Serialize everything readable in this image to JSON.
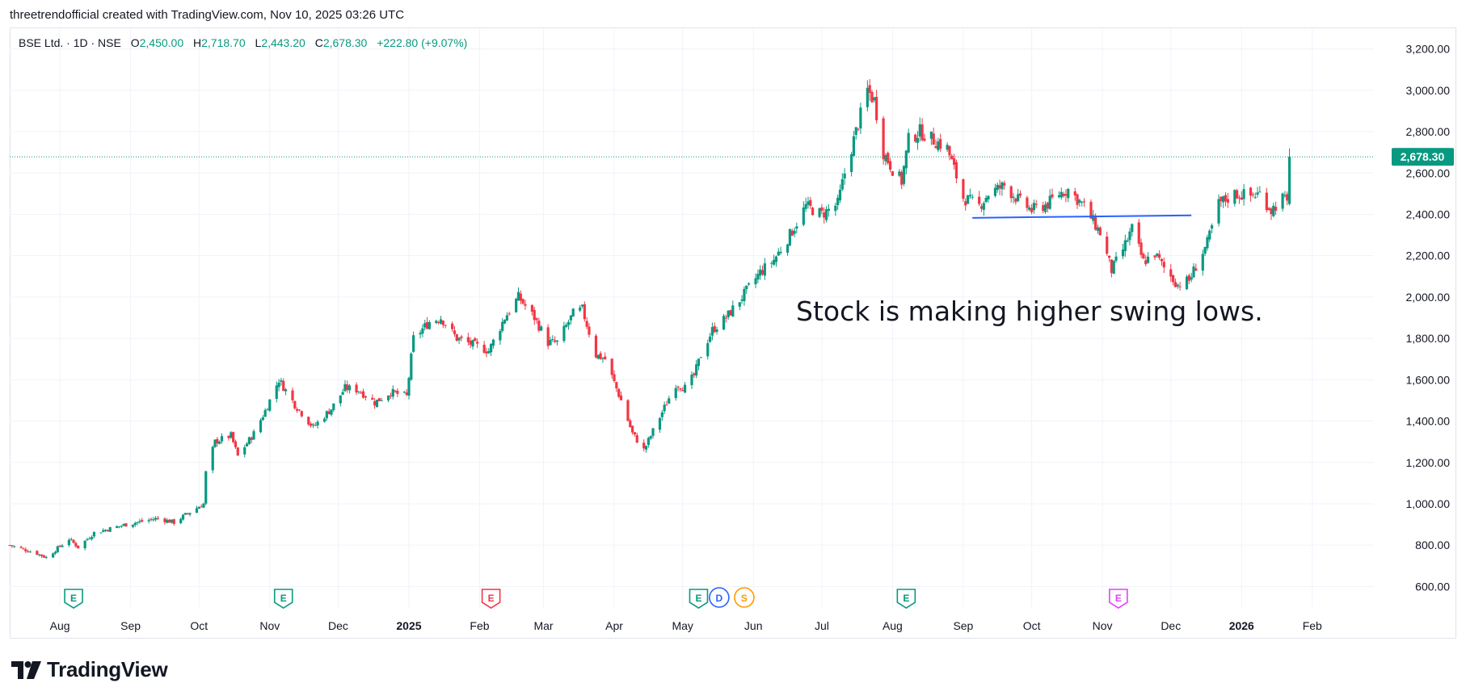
{
  "header": {
    "attribution": "threetrendofficial created with TradingView.com, Nov 10, 2025 03:26 UTC"
  },
  "legend": {
    "symbol": "BSE Ltd. · 1D · NSE",
    "o_label": "O",
    "o_value": "2,450.00",
    "h_label": "H",
    "h_value": "2,718.70",
    "l_label": "L",
    "l_value": "2,443.20",
    "c_label": "C",
    "c_value": "2,678.30",
    "change": "+222.80 (+9.07%)"
  },
  "annotation": "Stock is making higher swing lows.",
  "logo": {
    "text": "TradingView",
    "icon": "tradingview-logo-icon"
  },
  "colors": {
    "up": "#089981",
    "down": "#f23645",
    "trendline": "#2962ff",
    "grid": "#f0f3fa",
    "price_line": "#089981",
    "text": "#131722"
  },
  "chart_data": {
    "type": "candlestick",
    "title": "BSE Ltd. · 1D · NSE",
    "ylim": [
      500,
      3300
    ],
    "yticks": [
      {
        "value": 600,
        "label": "600.00"
      },
      {
        "value": 800,
        "label": "800.00"
      },
      {
        "value": 1000,
        "label": "1,000.00"
      },
      {
        "value": 1200,
        "label": "1,200.00"
      },
      {
        "value": 1400,
        "label": "1,400.00"
      },
      {
        "value": 1600,
        "label": "1,600.00"
      },
      {
        "value": 1800,
        "label": "1,800.00"
      },
      {
        "value": 2000,
        "label": "2,000.00"
      },
      {
        "value": 2200,
        "label": "2,200.00"
      },
      {
        "value": 2400,
        "label": "2,400.00"
      },
      {
        "value": 2600,
        "label": "2,600.00"
      },
      {
        "value": 2800,
        "label": "2,800.00"
      },
      {
        "value": 3000,
        "label": "3,000.00"
      },
      {
        "value": 3200,
        "label": "3,200.00"
      }
    ],
    "xlim": [
      "2024-07-10",
      "2026-02-28"
    ],
    "xticks": [
      {
        "date": "2024-08-01",
        "label": "Aug",
        "bold": false
      },
      {
        "date": "2024-09-01",
        "label": "Sep",
        "bold": false
      },
      {
        "date": "2024-10-01",
        "label": "Oct",
        "bold": false
      },
      {
        "date": "2024-11-01",
        "label": "Nov",
        "bold": false
      },
      {
        "date": "2024-12-01",
        "label": "Dec",
        "bold": false
      },
      {
        "date": "2025-01-01",
        "label": "2025",
        "bold": true
      },
      {
        "date": "2025-02-01",
        "label": "Feb",
        "bold": false
      },
      {
        "date": "2025-03-01",
        "label": "Mar",
        "bold": false
      },
      {
        "date": "2025-04-01",
        "label": "Apr",
        "bold": false
      },
      {
        "date": "2025-05-01",
        "label": "May",
        "bold": false
      },
      {
        "date": "2025-06-01",
        "label": "Jun",
        "bold": false
      },
      {
        "date": "2025-07-01",
        "label": "Jul",
        "bold": false
      },
      {
        "date": "2025-08-01",
        "label": "Aug",
        "bold": false
      },
      {
        "date": "2025-09-01",
        "label": "Sep",
        "bold": false
      },
      {
        "date": "2025-10-01",
        "label": "Oct",
        "bold": false
      },
      {
        "date": "2025-11-01",
        "label": "Nov",
        "bold": false
      },
      {
        "date": "2025-12-01",
        "label": "Dec",
        "bold": false
      },
      {
        "date": "2026-01-01",
        "label": "2026",
        "bold": true
      },
      {
        "date": "2026-02-01",
        "label": "Feb",
        "bold": false
      }
    ],
    "last_price": {
      "value": 2678.3,
      "label": "2,678.30"
    },
    "trendline": {
      "start": {
        "date": "2025-09-05",
        "price": 2383
      },
      "end": {
        "date": "2025-12-10",
        "price": 2395
      }
    },
    "anchors": [
      [
        "2024-07-10",
        800
      ],
      [
        "2024-07-22",
        760
      ],
      [
        "2024-07-26",
        740
      ],
      [
        "2024-08-05",
        830
      ],
      [
        "2024-08-09",
        790
      ],
      [
        "2024-08-16",
        860
      ],
      [
        "2024-08-30",
        900
      ],
      [
        "2024-09-13",
        930
      ],
      [
        "2024-09-20",
        910
      ],
      [
        "2024-09-27",
        960
      ],
      [
        "2024-10-03",
        1000
      ],
      [
        "2024-10-04",
        1150
      ],
      [
        "2024-10-08",
        1300
      ],
      [
        "2024-10-15",
        1330
      ],
      [
        "2024-10-18",
        1230
      ],
      [
        "2024-10-25",
        1340
      ],
      [
        "2024-10-30",
        1450
      ],
      [
        "2024-11-05",
        1600
      ],
      [
        "2024-11-12",
        1480
      ],
      [
        "2024-11-20",
        1370
      ],
      [
        "2024-11-28",
        1460
      ],
      [
        "2024-12-04",
        1560
      ],
      [
        "2024-12-10",
        1550
      ],
      [
        "2024-12-17",
        1490
      ],
      [
        "2024-12-24",
        1540
      ],
      [
        "2024-12-31",
        1520
      ],
      [
        "2025-01-03",
        1800
      ],
      [
        "2025-01-10",
        1880
      ],
      [
        "2025-01-15",
        1900
      ],
      [
        "2025-01-22",
        1800
      ],
      [
        "2025-01-29",
        1770
      ],
      [
        "2025-02-05",
        1740
      ],
      [
        "2025-02-12",
        1900
      ],
      [
        "2025-02-18",
        2000
      ],
      [
        "2025-02-25",
        1900
      ],
      [
        "2025-03-03",
        1780
      ],
      [
        "2025-03-07",
        1780
      ],
      [
        "2025-03-14",
        1920
      ],
      [
        "2025-03-18",
        1940
      ],
      [
        "2025-03-24",
        1720
      ],
      [
        "2025-03-28",
        1700
      ],
      [
        "2025-04-04",
        1500
      ],
      [
        "2025-04-09",
        1340
      ],
      [
        "2025-04-14",
        1260
      ],
      [
        "2025-04-21",
        1420
      ],
      [
        "2025-04-28",
        1580
      ],
      [
        "2025-05-02",
        1560
      ],
      [
        "2025-05-06",
        1620
      ],
      [
        "2025-05-09",
        1720
      ],
      [
        "2025-05-14",
        1840
      ],
      [
        "2025-05-20",
        1900
      ],
      [
        "2025-05-27",
        2000
      ],
      [
        "2025-06-04",
        2120
      ],
      [
        "2025-06-10",
        2180
      ],
      [
        "2025-06-17",
        2300
      ],
      [
        "2025-06-24",
        2440
      ],
      [
        "2025-07-01",
        2400
      ],
      [
        "2025-07-08",
        2450
      ],
      [
        "2025-07-11",
        2600
      ],
      [
        "2025-07-16",
        2800
      ],
      [
        "2025-07-21",
        3000
      ],
      [
        "2025-07-24",
        2950
      ],
      [
        "2025-07-28",
        2700
      ],
      [
        "2025-08-01",
        2620
      ],
      [
        "2025-08-05",
        2560
      ],
      [
        "2025-08-08",
        2760
      ],
      [
        "2025-08-13",
        2800
      ],
      [
        "2025-08-19",
        2760
      ],
      [
        "2025-08-25",
        2720
      ],
      [
        "2025-09-01",
        2480
      ],
      [
        "2025-09-08",
        2440
      ],
      [
        "2025-09-12",
        2500
      ],
      [
        "2025-09-19",
        2540
      ],
      [
        "2025-09-26",
        2460
      ],
      [
        "2025-10-01",
        2420
      ],
      [
        "2025-10-08",
        2450
      ],
      [
        "2025-10-13",
        2500
      ],
      [
        "2025-10-17",
        2520
      ],
      [
        "2025-10-24",
        2440
      ],
      [
        "2025-10-31",
        2310
      ],
      [
        "2025-11-05",
        2130
      ],
      [
        "2025-11-10",
        2230
      ],
      [
        "2025-11-14",
        2330
      ],
      [
        "2025-11-19",
        2170
      ],
      [
        "2025-11-24",
        2210
      ],
      [
        "2025-11-28",
        2140
      ],
      [
        "2025-12-04",
        2060
      ],
      [
        "2025-12-09",
        2080
      ],
      [
        "2025-12-12",
        2150
      ],
      [
        "2025-12-17",
        2260
      ],
      [
        "2025-12-22",
        2450
      ],
      [
        "2025-12-29",
        2500
      ],
      [
        "2026-01-05",
        2490
      ],
      [
        "2026-01-09",
        2500
      ],
      [
        "2026-01-14",
        2420
      ],
      [
        "2026-01-19",
        2480
      ],
      [
        "2026-01-21",
        2450
      ],
      [
        "2026-01-22",
        2678.3
      ]
    ],
    "events": [
      {
        "date": "2024-08-07",
        "label": "E",
        "kind": "earnings",
        "color": "#089981"
      },
      {
        "date": "2024-11-07",
        "label": "E",
        "kind": "earnings",
        "color": "#089981"
      },
      {
        "date": "2025-02-06",
        "label": "E",
        "kind": "earnings",
        "color": "#f23645"
      },
      {
        "date": "2025-05-08",
        "label": "E",
        "kind": "earnings",
        "color": "#089981"
      },
      {
        "date": "2025-05-17",
        "label": "D",
        "kind": "dividend",
        "color": "#2962ff"
      },
      {
        "date": "2025-05-28",
        "label": "S",
        "kind": "split",
        "color": "#ff9800"
      },
      {
        "date": "2025-08-07",
        "label": "E",
        "kind": "earnings",
        "color": "#089981"
      },
      {
        "date": "2025-11-08",
        "label": "E",
        "kind": "earnings",
        "color": "#e040fb"
      }
    ]
  }
}
